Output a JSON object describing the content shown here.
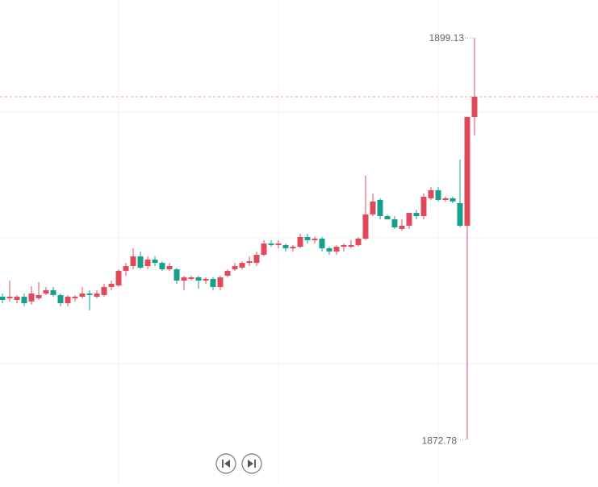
{
  "chart_data": {
    "type": "candlestick",
    "up_color": "#e0495a",
    "down_color": "#14a08c",
    "ylim": [
      1869.93,
      1901.62
    ],
    "open": [
      1882.15,
      1882.05,
      1881.94,
      1882.15,
      1881.84,
      1882.05,
      1882.36,
      1882.58,
      1882.26,
      1881.73,
      1882.05,
      1882.15,
      1882.36,
      1882.15,
      1882.26,
      1882.79,
      1882.89,
      1883.85,
      1884.16,
      1884.8,
      1884.16,
      1884.59,
      1884.37,
      1883.95,
      1883.95,
      1883.21,
      1883.32,
      1883.42,
      1883.21,
      1883.32,
      1882.79,
      1883.53,
      1883.95,
      1884.06,
      1884.37,
      1884.37,
      1884.9,
      1885.64,
      1885.54,
      1885.54,
      1885.33,
      1885.43,
      1886.07,
      1885.86,
      1885.96,
      1885.33,
      1885.12,
      1885.43,
      1885.43,
      1885.54,
      1885.96,
      1887.55,
      1888.5,
      1887.44,
      1887.23,
      1886.6,
      1886.81,
      1887.65,
      1887.44,
      1888.61,
      1889.14,
      1888.5,
      1888.61,
      1888.29,
      1886.81,
      1893.95
    ],
    "high": [
      1882.36,
      1883.21,
      1882.26,
      1882.36,
      1882.84,
      1883.1,
      1882.79,
      1882.79,
      1882.36,
      1882.26,
      1882.26,
      1882.79,
      1882.58,
      1882.58,
      1883.0,
      1883.21,
      1883.95,
      1884.37,
      1885.33,
      1885.12,
      1884.8,
      1884.8,
      1884.48,
      1884.37,
      1884.06,
      1883.53,
      1883.53,
      1883.53,
      1883.42,
      1883.42,
      1883.53,
      1883.95,
      1884.37,
      1884.48,
      1884.8,
      1885.12,
      1885.86,
      1885.86,
      1885.86,
      1885.64,
      1885.54,
      1886.28,
      1886.28,
      1886.07,
      1886.07,
      1885.43,
      1885.54,
      1885.64,
      1885.86,
      1886.07,
      1890.09,
      1888.92,
      1888.61,
      1887.55,
      1887.44,
      1887.23,
      1887.65,
      1887.86,
      1888.92,
      1889.35,
      1889.35,
      1888.71,
      1888.71,
      1891.15,
      1893.95,
      1899.13
    ],
    "low": [
      1881.73,
      1881.84,
      1881.73,
      1881.52,
      1881.63,
      1881.94,
      1882.26,
      1882.15,
      1881.52,
      1881.52,
      1881.84,
      1882.05,
      1881.25,
      1882.05,
      1882.15,
      1882.58,
      1882.79,
      1883.53,
      1883.95,
      1883.95,
      1883.95,
      1884.16,
      1883.85,
      1883.85,
      1883.0,
      1882.58,
      1883.21,
      1882.68,
      1883.0,
      1882.58,
      1882.58,
      1883.42,
      1883.85,
      1883.95,
      1884.16,
      1884.16,
      1884.8,
      1885.43,
      1885.33,
      1885.12,
      1885.12,
      1885.33,
      1885.64,
      1885.64,
      1885.12,
      1884.9,
      1884.9,
      1885.12,
      1885.33,
      1885.43,
      1885.86,
      1887.44,
      1887.23,
      1887.23,
      1886.6,
      1886.49,
      1886.6,
      1887.23,
      1887.23,
      1888.5,
      1888.4,
      1888.4,
      1888.29,
      1886.7,
      1872.78,
      1892.73
    ],
    "close": [
      1881.94,
      1882.15,
      1882.15,
      1881.73,
      1882.36,
      1882.26,
      1882.58,
      1882.26,
      1881.73,
      1882.15,
      1882.15,
      1882.36,
      1882.26,
      1882.36,
      1882.79,
      1883.0,
      1883.85,
      1884.16,
      1884.8,
      1884.06,
      1884.59,
      1884.37,
      1883.95,
      1884.16,
      1883.21,
      1883.42,
      1883.42,
      1883.21,
      1883.32,
      1882.79,
      1883.42,
      1883.85,
      1884.16,
      1884.37,
      1884.48,
      1884.9,
      1885.64,
      1885.54,
      1885.64,
      1885.33,
      1885.43,
      1886.07,
      1885.86,
      1885.96,
      1885.33,
      1885.12,
      1885.43,
      1885.54,
      1885.54,
      1885.96,
      1887.55,
      1888.4,
      1887.44,
      1887.23,
      1886.7,
      1886.81,
      1887.65,
      1887.44,
      1888.71,
      1889.14,
      1888.5,
      1888.61,
      1888.4,
      1886.81,
      1893.95,
      1895.27
    ]
  }
}
